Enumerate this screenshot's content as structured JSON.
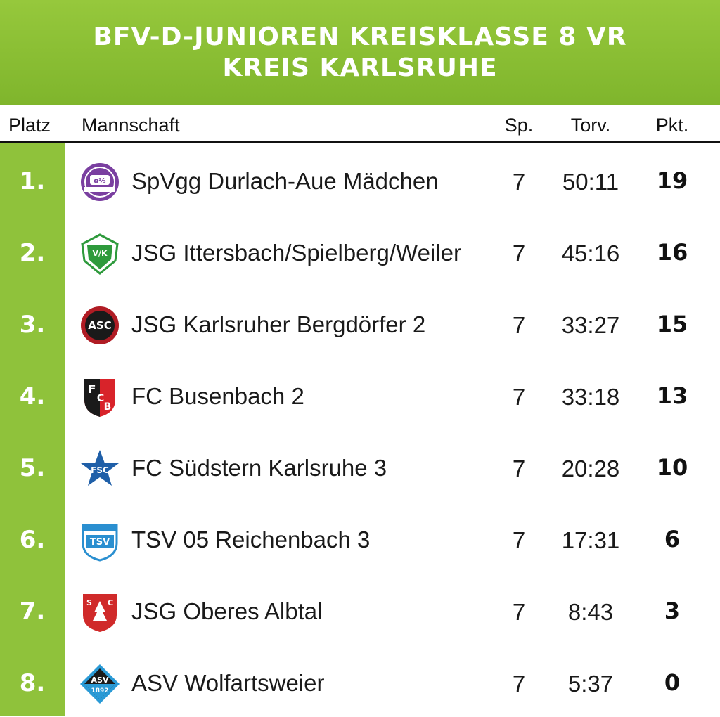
{
  "header": {
    "title_line1": "BFV-D-JUNIOREN KREISKLASSE 8 VR",
    "title_line2": "KREIS KARLSRUHE"
  },
  "columns": {
    "platz": "Platz",
    "mannschaft": "Mannschaft",
    "sp": "Sp.",
    "torv": "Torv.",
    "pkt": "Pkt."
  },
  "colors": {
    "accent_green": "#8fc23b",
    "header_green": "#86bb32",
    "text": "#1a1a1a"
  },
  "rows": [
    {
      "rank": "1.",
      "team": "SpVgg Durlach-Aue Mädchen",
      "sp": "7",
      "torv": "50:11",
      "pkt": "19",
      "logo": "spvgg-durlach-aue-crest-icon"
    },
    {
      "rank": "2.",
      "team": "JSG Ittersbach/Spielberg/Weiler",
      "sp": "7",
      "torv": "45:16",
      "pkt": "16",
      "logo": "vfk-ittersbach-crest-icon"
    },
    {
      "rank": "3.",
      "team": "JSG Karlsruher Bergdörfer 2",
      "sp": "7",
      "torv": "33:27",
      "pkt": "15",
      "logo": "asc-crest-icon"
    },
    {
      "rank": "4.",
      "team": "FC Busenbach 2",
      "sp": "7",
      "torv": "33:18",
      "pkt": "13",
      "logo": "fc-busenbach-crest-icon"
    },
    {
      "rank": "5.",
      "team": "FC Südstern Karlsruhe 3",
      "sp": "7",
      "torv": "20:28",
      "pkt": "10",
      "logo": "fc-suedstern-star-icon"
    },
    {
      "rank": "6.",
      "team": "TSV 05 Reichenbach 3",
      "sp": "7",
      "torv": "17:31",
      "pkt": "6",
      "logo": "tsv-reichenbach-crest-icon"
    },
    {
      "rank": "7.",
      "team": "JSG Oberes Albtal",
      "sp": "7",
      "torv": "8:43",
      "pkt": "3",
      "logo": "sc-schielberg-crest-icon"
    },
    {
      "rank": "8.",
      "team": "ASV Wolfartsweier",
      "sp": "7",
      "torv": "5:37",
      "pkt": "0",
      "logo": "asv-wolfartsweier-crest-icon"
    }
  ]
}
